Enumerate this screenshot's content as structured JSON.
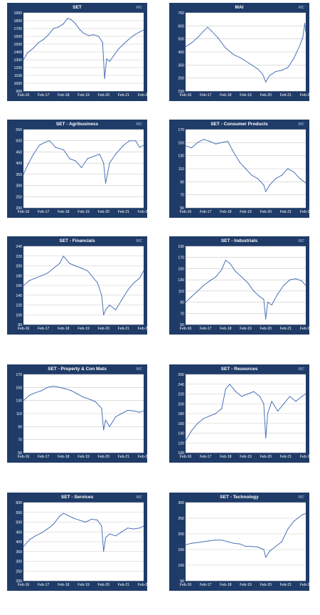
{
  "colors": {
    "panel_bg": "#1f3b68",
    "plot_bg": "#ffffff",
    "grid": "#c8c8c8",
    "line": "#4a72b8",
    "title": "#ffffff",
    "tick": "#ffffff"
  },
  "logo_text": "RIC",
  "chart_data": [
    {
      "type": "line",
      "title": "SET",
      "x_tick_labels": [
        "Feb-16",
        "Feb-17",
        "Feb-18",
        "Feb-19",
        "Feb-20",
        "Feb-21",
        "Feb-22"
      ],
      "y_tick_labels": [
        "900",
        "1000",
        "1100",
        "1200",
        "1300",
        "1400",
        "1500",
        "1600",
        "1700",
        "1800",
        "1900"
      ],
      "ylim": [
        900,
        1900
      ],
      "grid": "horizontal",
      "legend": "none",
      "x": [
        0,
        0.2,
        0.35,
        0.5,
        0.75,
        1.0,
        1.25,
        1.5,
        1.75,
        2.0,
        2.2,
        2.4,
        2.6,
        2.8,
        3.0,
        3.25,
        3.5,
        3.75,
        3.95,
        4.05,
        4.15,
        4.3,
        4.5,
        4.75,
        5.0,
        5.25,
        5.5,
        5.75,
        6.0
      ],
      "values": [
        1300,
        1390,
        1420,
        1450,
        1520,
        1560,
        1620,
        1700,
        1720,
        1760,
        1830,
        1810,
        1760,
        1690,
        1640,
        1610,
        1620,
        1600,
        1520,
        1060,
        1310,
        1280,
        1350,
        1440,
        1500,
        1560,
        1610,
        1650,
        1680
      ]
    },
    {
      "type": "line",
      "title": "MAI",
      "x_tick_labels": [
        "Feb-16",
        "Feb-17",
        "Feb-18",
        "Feb-19",
        "Feb-20",
        "Feb-21",
        "Feb-22"
      ],
      "y_tick_labels": [
        "150",
        "250",
        "350",
        "450",
        "550",
        "650",
        "750"
      ],
      "ylim": [
        150,
        750
      ],
      "grid": "horizontal",
      "legend": "none",
      "x": [
        0,
        0.3,
        0.6,
        0.9,
        1.1,
        1.3,
        1.6,
        2.0,
        2.4,
        2.8,
        3.2,
        3.6,
        3.85,
        4.0,
        4.2,
        4.5,
        4.8,
        5.1,
        5.4,
        5.7,
        5.85,
        5.95,
        6.0
      ],
      "values": [
        490,
        520,
        560,
        610,
        640,
        610,
        560,
        480,
        430,
        400,
        360,
        320,
        280,
        220,
        270,
        300,
        310,
        330,
        400,
        500,
        560,
        670,
        600
      ]
    },
    {
      "type": "line",
      "title": "SET - Agribusiness",
      "x_tick_labels": [
        "Feb-16",
        "Feb-17",
        "Feb-18",
        "Feb-19",
        "Feb-20",
        "Feb-21",
        "Feb-22"
      ],
      "y_tick_labels": [
        "200",
        "250",
        "300",
        "350",
        "400",
        "450",
        "500",
        "550"
      ],
      "ylim": [
        200,
        550
      ],
      "grid": "horizontal",
      "legend": "none",
      "x": [
        0,
        0.2,
        0.5,
        0.8,
        1.0,
        1.3,
        1.6,
        2.0,
        2.3,
        2.6,
        2.9,
        3.2,
        3.5,
        3.8,
        4.0,
        4.1,
        4.3,
        4.6,
        5.0,
        5.3,
        5.6,
        5.8,
        6.0
      ],
      "values": [
        350,
        390,
        440,
        480,
        490,
        500,
        470,
        460,
        420,
        410,
        380,
        420,
        430,
        440,
        400,
        310,
        400,
        440,
        480,
        500,
        500,
        470,
        480
      ]
    },
    {
      "type": "line",
      "title": "SET - Consumer Products",
      "x_tick_labels": [
        "Feb-16",
        "Feb-17",
        "Feb-18",
        "Feb-19",
        "Feb-20",
        "Feb-21",
        "Feb-22"
      ],
      "y_tick_labels": [
        "50",
        "70",
        "90",
        "110",
        "130",
        "150",
        "170"
      ],
      "ylim": [
        50,
        170
      ],
      "grid": "horizontal",
      "legend": "none",
      "x": [
        0,
        0.3,
        0.6,
        0.9,
        1.2,
        1.5,
        1.8,
        2.1,
        2.4,
        2.7,
        3.0,
        3.3,
        3.6,
        3.9,
        4.0,
        4.2,
        4.5,
        4.8,
        5.1,
        5.4,
        5.7,
        6.0
      ],
      "values": [
        145,
        142,
        150,
        155,
        152,
        148,
        150,
        152,
        135,
        120,
        110,
        100,
        95,
        85,
        75,
        85,
        95,
        100,
        110,
        105,
        95,
        88
      ]
    },
    {
      "type": "line",
      "title": "SET - Financials",
      "x_tick_labels": [
        "Feb-16",
        "Feb-17",
        "Feb-18",
        "Feb-19",
        "Feb-20",
        "Feb-21",
        "Feb-22"
      ],
      "y_tick_labels": [
        "80",
        "100",
        "120",
        "140",
        "160",
        "180",
        "200",
        "220",
        "240"
      ],
      "ylim": [
        80,
        240
      ],
      "grid": "horizontal",
      "legend": "none",
      "x": [
        0,
        0.3,
        0.6,
        0.9,
        1.2,
        1.5,
        1.8,
        2.0,
        2.3,
        2.6,
        2.9,
        3.2,
        3.5,
        3.7,
        3.9,
        4.0,
        4.1,
        4.3,
        4.6,
        4.9,
        5.2,
        5.5,
        5.8,
        6.0
      ],
      "values": [
        160,
        170,
        175,
        180,
        185,
        195,
        205,
        220,
        205,
        200,
        195,
        190,
        175,
        165,
        140,
        100,
        110,
        120,
        110,
        130,
        150,
        165,
        175,
        190
      ]
    },
    {
      "type": "line",
      "title": "SET - Industrials",
      "x_tick_labels": [
        "Feb-16",
        "Feb-17",
        "Feb-18",
        "Feb-19",
        "Feb-20",
        "Feb-21",
        "Feb-22"
      ],
      "y_tick_labels": [
        "50",
        "70",
        "90",
        "110",
        "130",
        "150",
        "170",
        "190"
      ],
      "ylim": [
        50,
        190
      ],
      "grid": "horizontal",
      "legend": "none",
      "x": [
        0,
        0.3,
        0.6,
        0.9,
        1.2,
        1.5,
        1.8,
        2.0,
        2.2,
        2.5,
        2.8,
        3.1,
        3.4,
        3.7,
        3.9,
        4.0,
        4.1,
        4.3,
        4.6,
        4.9,
        5.2,
        5.5,
        5.8,
        6.0
      ],
      "values": [
        90,
        100,
        110,
        120,
        128,
        135,
        148,
        165,
        160,
        145,
        135,
        125,
        110,
        100,
        95,
        60,
        90,
        85,
        105,
        120,
        130,
        132,
        128,
        120
      ]
    },
    {
      "type": "line",
      "title": "SET - Property & Con Mats",
      "x_tick_labels": [
        "Feb-16",
        "Feb-17",
        "Feb-18",
        "Feb-19",
        "Feb-20",
        "Feb-21",
        "Feb-22"
      ],
      "y_tick_labels": [
        "50",
        "70",
        "90",
        "110",
        "130",
        "150",
        "170"
      ],
      "ylim": [
        50,
        170
      ],
      "grid": "horizontal",
      "legend": "none",
      "x": [
        0,
        0.3,
        0.6,
        0.9,
        1.2,
        1.5,
        1.8,
        2.1,
        2.4,
        2.7,
        3.0,
        3.3,
        3.6,
        3.9,
        4.0,
        4.1,
        4.3,
        4.6,
        4.9,
        5.2,
        5.5,
        5.8,
        6.0
      ],
      "values": [
        130,
        138,
        142,
        145,
        150,
        152,
        150,
        148,
        145,
        140,
        135,
        132,
        128,
        118,
        85,
        100,
        90,
        105,
        110,
        115,
        114,
        112,
        114
      ]
    },
    {
      "type": "line",
      "title": "SET - Resources",
      "x_tick_labels": [
        "Feb-16",
        "Feb-17",
        "Feb-18",
        "Feb-19",
        "Feb-20",
        "Feb-21",
        "Feb-22"
      ],
      "y_tick_labels": [
        "100",
        "120",
        "140",
        "160",
        "180",
        "200",
        "220",
        "240",
        "260"
      ],
      "ylim": [
        100,
        260
      ],
      "grid": "horizontal",
      "legend": "none",
      "x": [
        0,
        0.3,
        0.6,
        0.9,
        1.2,
        1.5,
        1.8,
        2.0,
        2.2,
        2.5,
        2.8,
        3.1,
        3.4,
        3.7,
        3.9,
        4.0,
        4.1,
        4.3,
        4.6,
        4.9,
        5.2,
        5.5,
        5.8,
        6.0
      ],
      "values": [
        125,
        145,
        160,
        170,
        175,
        180,
        190,
        230,
        240,
        225,
        215,
        220,
        225,
        215,
        200,
        130,
        180,
        205,
        185,
        200,
        215,
        205,
        215,
        220
      ]
    },
    {
      "type": "line",
      "title": "SET - Services",
      "x_tick_labels": [
        "Feb-16",
        "Feb-17",
        "Feb-18",
        "Feb-19",
        "Feb-20",
        "Feb-21",
        "Feb-22"
      ],
      "y_tick_labels": [
        "200",
        "250",
        "300",
        "350",
        "400",
        "450",
        "500",
        "550",
        "600"
      ],
      "ylim": [
        200,
        600
      ],
      "grid": "horizontal",
      "legend": "none",
      "x": [
        0,
        0.3,
        0.6,
        0.9,
        1.2,
        1.5,
        1.8,
        2.0,
        2.2,
        2.5,
        2.8,
        3.1,
        3.4,
        3.7,
        3.9,
        4.0,
        4.1,
        4.3,
        4.6,
        4.9,
        5.2,
        5.5,
        5.8,
        6.0
      ],
      "values": [
        375,
        410,
        430,
        445,
        465,
        490,
        530,
        545,
        535,
        520,
        510,
        500,
        515,
        510,
        480,
        350,
        420,
        440,
        430,
        450,
        470,
        465,
        470,
        480
      ]
    },
    {
      "type": "line",
      "title": "SET - Technology",
      "x_tick_labels": [
        "Feb-16",
        "Feb-17",
        "Feb-18",
        "Feb-19",
        "Feb-20",
        "Feb-21",
        "Feb-22"
      ],
      "y_tick_labels": [
        "50",
        "100",
        "150",
        "200",
        "250",
        "300"
      ],
      "ylim": [
        50,
        300
      ],
      "grid": "horizontal",
      "legend": "none",
      "x": [
        0,
        0.3,
        0.6,
        0.9,
        1.2,
        1.5,
        1.8,
        2.1,
        2.4,
        2.7,
        3.0,
        3.3,
        3.6,
        3.9,
        4.0,
        4.2,
        4.5,
        4.8,
        5.1,
        5.4,
        5.6,
        5.8,
        6.0
      ],
      "values": [
        165,
        170,
        172,
        175,
        178,
        180,
        180,
        175,
        170,
        168,
        160,
        160,
        158,
        150,
        125,
        145,
        160,
        175,
        215,
        240,
        250,
        260,
        265
      ]
    }
  ]
}
